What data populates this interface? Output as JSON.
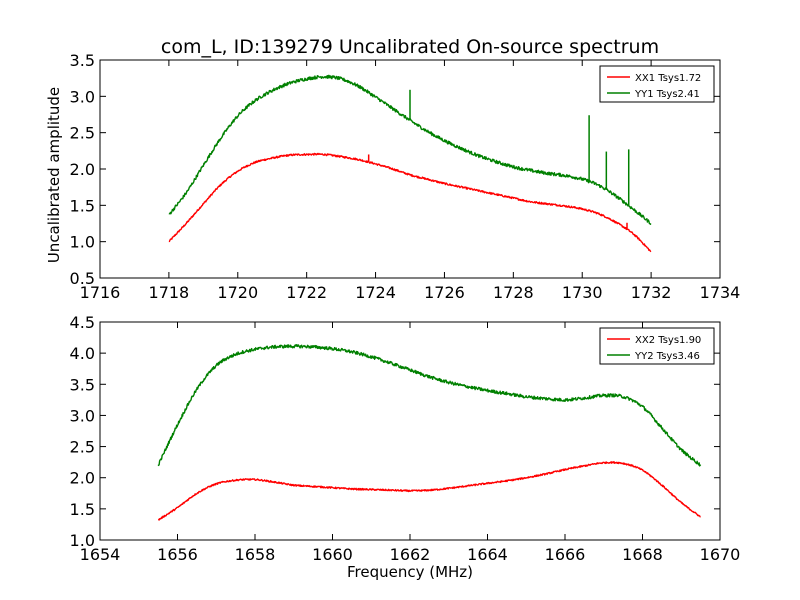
{
  "chart_data": [
    {
      "type": "line",
      "title": "com_L, ID:139279 Uncalibrated On-source spectrum",
      "xlabel": "",
      "ylabel": "Uncalibrated amplitude",
      "xlim": [
        1716,
        1734
      ],
      "ylim": [
        0.5,
        3.5
      ],
      "xticks": [
        1716,
        1718,
        1720,
        1722,
        1724,
        1726,
        1728,
        1730,
        1732,
        1734
      ],
      "xtick_labels": [
        "1716",
        "1718",
        "1720",
        "1722",
        "1724",
        "1726",
        "1728",
        "1730",
        "1732",
        "1734"
      ],
      "yticks": [
        0.5,
        1.0,
        1.5,
        2.0,
        2.5,
        3.0,
        3.5
      ],
      "ytick_labels": [
        "0.5",
        "1.0",
        "1.5",
        "2.0",
        "2.5",
        "3.0",
        "3.5"
      ],
      "legend_position": "top-right",
      "series": [
        {
          "name": "XX1 Tsys1.72",
          "color": "#ff0000",
          "noise": 0.012,
          "x": [
            1718.0,
            1718.5,
            1719.0,
            1719.5,
            1720.0,
            1720.5,
            1721.0,
            1721.5,
            1722.0,
            1722.5,
            1723.0,
            1723.5,
            1724.0,
            1724.5,
            1725.0,
            1725.5,
            1726.0,
            1726.5,
            1727.0,
            1727.5,
            1728.0,
            1728.5,
            1729.0,
            1729.5,
            1730.0,
            1730.5,
            1731.0,
            1731.5,
            1732.0
          ],
          "y": [
            1.0,
            1.25,
            1.52,
            1.78,
            1.97,
            2.09,
            2.15,
            2.19,
            2.2,
            2.2,
            2.17,
            2.13,
            2.07,
            2.0,
            1.92,
            1.86,
            1.8,
            1.75,
            1.7,
            1.65,
            1.6,
            1.55,
            1.52,
            1.49,
            1.45,
            1.38,
            1.26,
            1.1,
            0.86
          ],
          "spikes": [
            {
              "x": 1723.8,
              "y": 2.2
            },
            {
              "x": 1731.3,
              "y": 1.26
            }
          ]
        },
        {
          "name": "YY1 Tsys2.41",
          "color": "#008000",
          "noise": 0.022,
          "x": [
            1718.0,
            1718.5,
            1719.0,
            1719.5,
            1720.0,
            1720.5,
            1721.0,
            1721.5,
            1722.0,
            1722.5,
            1723.0,
            1723.5,
            1724.0,
            1724.5,
            1725.0,
            1725.5,
            1726.0,
            1726.5,
            1727.0,
            1727.5,
            1728.0,
            1728.5,
            1729.0,
            1729.5,
            1730.0,
            1730.5,
            1731.0,
            1731.5,
            1732.0
          ],
          "y": [
            1.37,
            1.67,
            2.05,
            2.42,
            2.73,
            2.94,
            3.08,
            3.18,
            3.24,
            3.27,
            3.24,
            3.14,
            2.99,
            2.83,
            2.67,
            2.52,
            2.39,
            2.28,
            2.18,
            2.1,
            2.03,
            1.98,
            1.94,
            1.91,
            1.86,
            1.77,
            1.62,
            1.44,
            1.25
          ],
          "spikes": [
            {
              "x": 1725.0,
              "y": 3.09
            },
            {
              "x": 1730.2,
              "y": 2.74
            },
            {
              "x": 1730.7,
              "y": 2.24
            },
            {
              "x": 1731.35,
              "y": 2.27
            }
          ]
        }
      ]
    },
    {
      "type": "line",
      "title": "",
      "xlabel": "Frequency (MHz)",
      "ylabel": "",
      "xlim": [
        1654,
        1670
      ],
      "ylim": [
        1.0,
        4.5
      ],
      "xticks": [
        1654,
        1656,
        1658,
        1660,
        1662,
        1664,
        1666,
        1668,
        1670
      ],
      "xtick_labels": [
        "1654",
        "1656",
        "1658",
        "1660",
        "1662",
        "1664",
        "1666",
        "1668",
        "1670"
      ],
      "yticks": [
        1.0,
        1.5,
        2.0,
        2.5,
        3.0,
        3.5,
        4.0,
        4.5
      ],
      "ytick_labels": [
        "1.0",
        "1.5",
        "2.0",
        "2.5",
        "3.0",
        "3.5",
        "4.0",
        "4.5"
      ],
      "legend_position": "top-right",
      "series": [
        {
          "name": "XX2 Tsys1.90",
          "color": "#ff0000",
          "noise": 0.012,
          "x": [
            1655.5,
            1656.0,
            1656.5,
            1657.0,
            1657.5,
            1658.0,
            1658.5,
            1659.0,
            1659.5,
            1660.0,
            1660.5,
            1661.0,
            1661.5,
            1662.0,
            1662.5,
            1663.0,
            1663.5,
            1664.0,
            1664.5,
            1665.0,
            1665.5,
            1666.0,
            1666.5,
            1667.0,
            1667.5,
            1668.0,
            1668.5,
            1669.0,
            1669.5
          ],
          "y": [
            1.32,
            1.52,
            1.75,
            1.9,
            1.96,
            1.97,
            1.93,
            1.88,
            1.86,
            1.84,
            1.82,
            1.81,
            1.8,
            1.79,
            1.8,
            1.83,
            1.87,
            1.91,
            1.95,
            2.0,
            2.06,
            2.13,
            2.19,
            2.24,
            2.23,
            2.12,
            1.88,
            1.6,
            1.37
          ]
        },
        {
          "name": "YY2 Tsys3.46",
          "color": "#008000",
          "noise": 0.025,
          "x": [
            1655.5,
            1656.0,
            1656.5,
            1657.0,
            1657.5,
            1658.0,
            1658.5,
            1659.0,
            1659.5,
            1660.0,
            1660.5,
            1661.0,
            1661.5,
            1662.0,
            1662.5,
            1663.0,
            1663.5,
            1664.0,
            1664.5,
            1665.0,
            1665.5,
            1666.0,
            1666.5,
            1667.0,
            1667.5,
            1668.0,
            1668.5,
            1669.0,
            1669.5
          ],
          "y": [
            2.2,
            2.85,
            3.42,
            3.8,
            3.98,
            4.06,
            4.1,
            4.11,
            4.1,
            4.07,
            4.02,
            3.94,
            3.84,
            3.73,
            3.62,
            3.53,
            3.46,
            3.4,
            3.35,
            3.3,
            3.27,
            3.25,
            3.28,
            3.32,
            3.3,
            3.14,
            2.8,
            2.45,
            2.2
          ]
        }
      ]
    }
  ]
}
